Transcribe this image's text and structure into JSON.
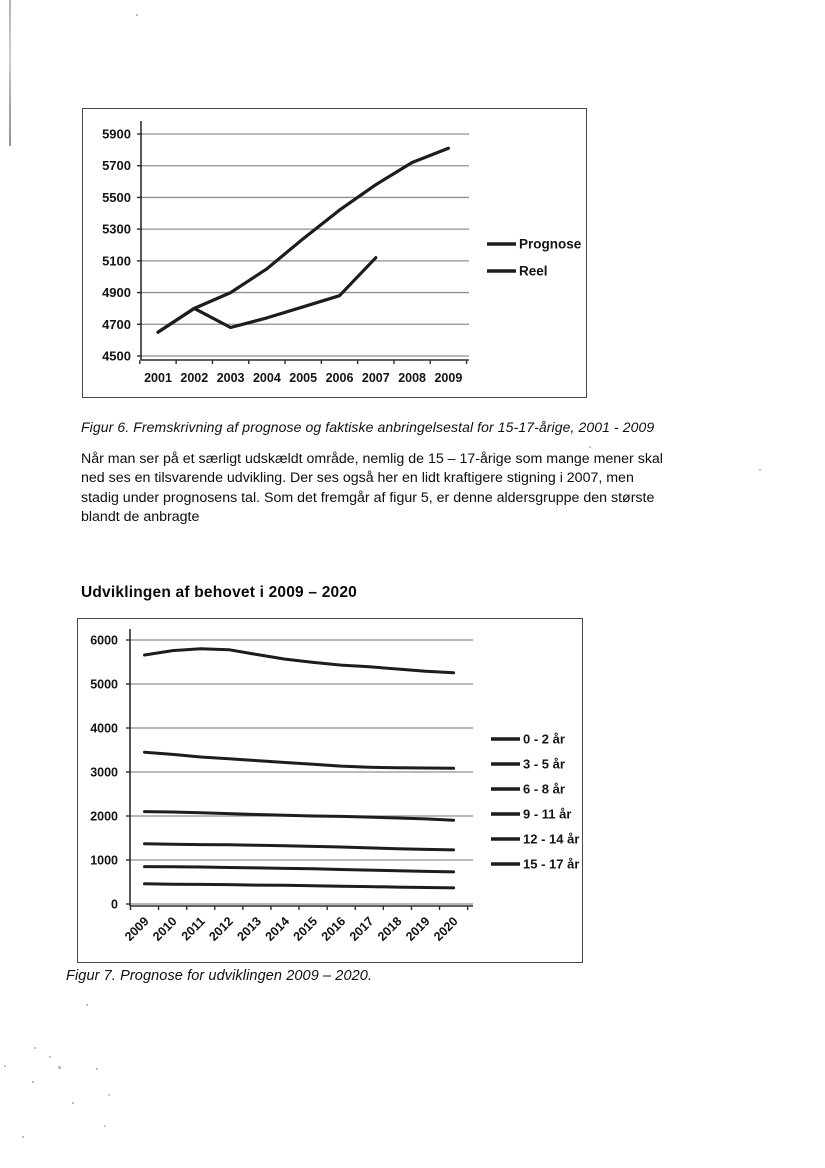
{
  "page": {
    "figure6_caption": "Figur 6. Fremskrivning af prognose og faktiske anbringelsestal for 15-17-årige, 2001 - 2009",
    "paragraph": "Når man ser på et særligt udskældt område, nemlig de 15 – 17-årige som mange mener skal\nned ses en tilsvarende udvikling. Der ses også her en lidt kraftigere stigning i 2007, men\nstadig under prognosens tal. Som det fremgår af figur 5, er denne aldersgruppe den største\nblandt de anbragte",
    "section_heading": "Udviklingen af behovet i 2009 – 2020",
    "figure7_caption": "Figur 7. Prognose for udviklingen 2009 – 2020."
  },
  "colors": {
    "data_line": "#1d1d1d",
    "gridline": "#8f8f8f",
    "axis": "#2e2e2e",
    "text": "#141414"
  },
  "chart_data": [
    {
      "type": "line",
      "title": "",
      "xlabel": "",
      "ylabel": "",
      "x": [
        "2001",
        "2002",
        "2003",
        "2004",
        "2005",
        "2006",
        "2007",
        "2008",
        "2009"
      ],
      "series": [
        {
          "name": "Prognose",
          "values": [
            4650,
            4800,
            4900,
            5050,
            5240,
            5420,
            5580,
            5720,
            5810
          ]
        },
        {
          "name": "Reel",
          "values": [
            4650,
            4800,
            4680,
            4740,
            4810,
            4880,
            5120,
            null,
            null
          ]
        }
      ],
      "yticks": [
        4500,
        4700,
        4900,
        5100,
        5300,
        5500,
        5700,
        5900
      ],
      "ylim": [
        4500,
        5900
      ],
      "grid": true,
      "legend_position": "right"
    },
    {
      "type": "line",
      "title": "",
      "xlabel": "",
      "ylabel": "",
      "x": [
        "2009",
        "2010",
        "2011",
        "2012",
        "2013",
        "2014",
        "2015",
        "2016",
        "2017",
        "2018",
        "2019",
        "2020"
      ],
      "series": [
        {
          "name": "0 - 2 år",
          "values": [
            460,
            450,
            445,
            440,
            430,
            425,
            415,
            405,
            395,
            385,
            375,
            365
          ]
        },
        {
          "name": "3 - 5 år",
          "values": [
            850,
            845,
            840,
            830,
            820,
            810,
            800,
            785,
            770,
            755,
            740,
            730
          ]
        },
        {
          "name": "6 - 8 år",
          "values": [
            1370,
            1360,
            1350,
            1345,
            1335,
            1325,
            1310,
            1295,
            1275,
            1255,
            1240,
            1230
          ]
        },
        {
          "name": "9 - 11 år",
          "values": [
            2100,
            2090,
            2075,
            2055,
            2035,
            2015,
            2000,
            1990,
            1975,
            1955,
            1935,
            1905
          ]
        },
        {
          "name": "12 - 14 år",
          "values": [
            3450,
            3400,
            3340,
            3300,
            3260,
            3215,
            3175,
            3135,
            3110,
            3095,
            3090,
            3085
          ]
        },
        {
          "name": "15 - 17 år",
          "values": [
            5660,
            5760,
            5800,
            5780,
            5670,
            5565,
            5490,
            5430,
            5390,
            5340,
            5290,
            5255
          ]
        }
      ],
      "yticks": [
        0,
        1000,
        2000,
        3000,
        4000,
        5000,
        6000
      ],
      "ylim": [
        0,
        6000
      ],
      "grid": true,
      "legend_position": "right"
    }
  ]
}
